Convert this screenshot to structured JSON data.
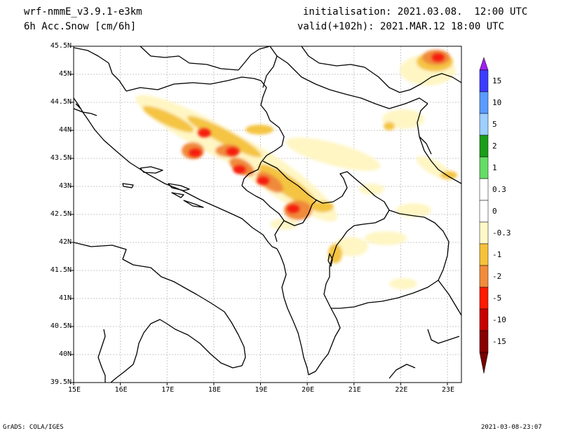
{
  "header": {
    "model": "wrf-nmmE_v3.9.1-e3km",
    "variable": "6h Acc.Snow [cm/6h]",
    "init": "initialisation: 2021.03.08.  12:00 UTC",
    "valid": "valid(+102h): 2021.MAR.12 18:00 UTC"
  },
  "map": {
    "lat_labels": [
      "45.5N",
      "45N",
      "44.5N",
      "44N",
      "43.5N",
      "43N",
      "42.5N",
      "42N",
      "41.5N",
      "41N",
      "40.5N",
      "40N",
      "39.5N"
    ],
    "lon_labels": [
      "15E",
      "16E",
      "17E",
      "18E",
      "19E",
      "20E",
      "21E",
      "22E",
      "23E"
    ],
    "lon_range": [
      15,
      23.3
    ],
    "lat_range": [
      39.5,
      45.5
    ],
    "region": "Western Balkans / Adriatic",
    "snow_cells": [
      {
        "lon": 17.6,
        "lat": 43.6,
        "level": "-5"
      },
      {
        "lon": 18.4,
        "lat": 43.62,
        "level": "-5"
      },
      {
        "lon": 18.55,
        "lat": 43.3,
        "level": "-5"
      },
      {
        "lon": 19.05,
        "lat": 43.1,
        "level": "-5"
      },
      {
        "lon": 19.7,
        "lat": 42.6,
        "level": "-5"
      },
      {
        "lon": 22.8,
        "lat": 45.3,
        "level": "-5"
      },
      {
        "lon": 17.8,
        "lat": 43.95,
        "level": "-5"
      }
    ]
  },
  "colorbar": {
    "labels": [
      "15",
      "10",
      "5",
      "2",
      "1",
      "0.3",
      "0",
      "-0.3",
      "-1",
      "-2",
      "-5",
      "-10",
      "-15"
    ],
    "colors": [
      "#3c3cff",
      "#5a9bff",
      "#9ecfff",
      "#1a9e1a",
      "#66dd66",
      "#ffffff",
      "#ffffff",
      "#fff8c8",
      "#f6c23a",
      "#f28c3c",
      "#ff1a00",
      "#c80000",
      "#8a0000"
    ],
    "top_arrow_color": "#a020f0",
    "bottom_arrow_color": "#780000"
  },
  "footer": {
    "left": "GrADS: COLA/IGES",
    "right": "2021-03-08-23:07"
  }
}
